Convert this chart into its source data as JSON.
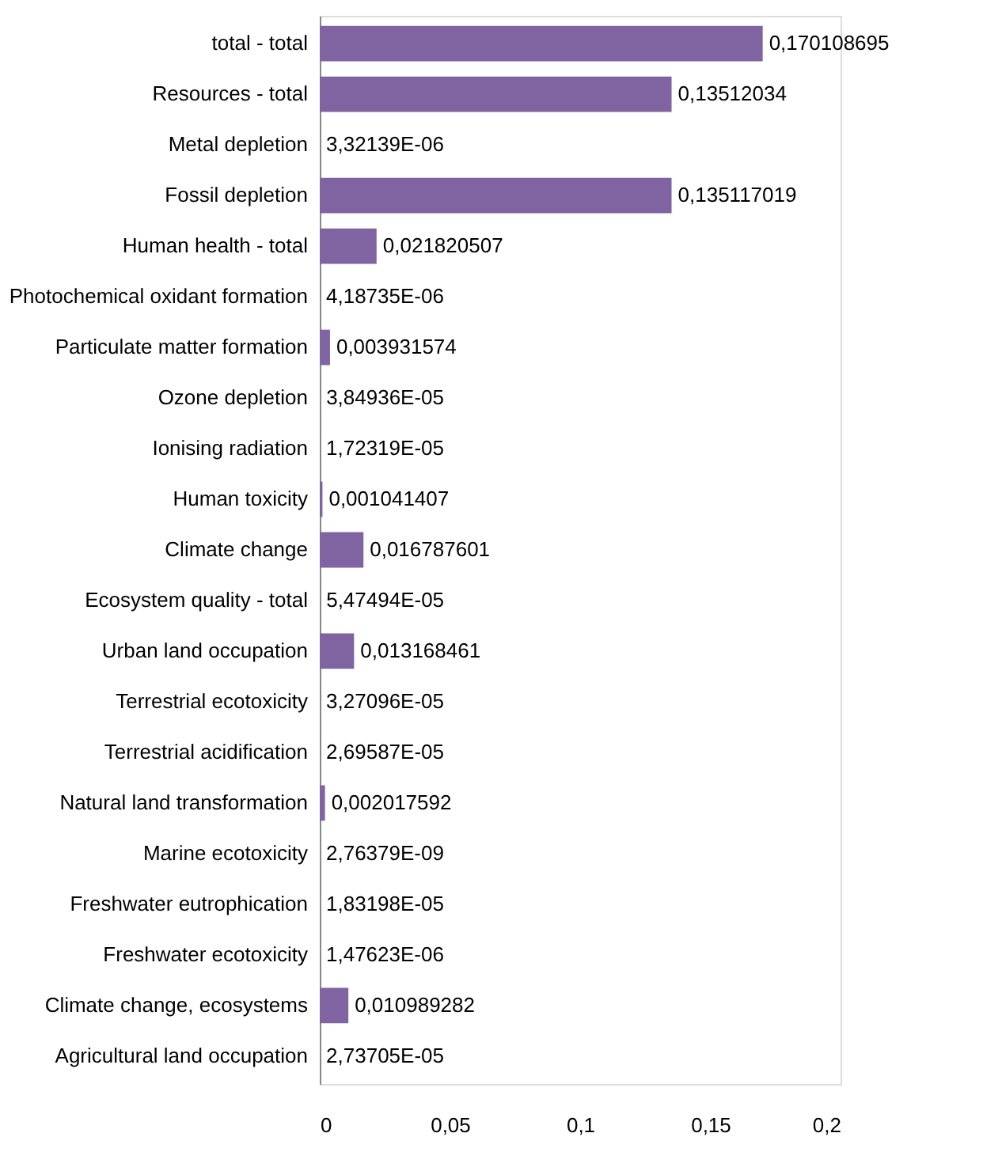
{
  "chart_data": {
    "type": "bar",
    "orientation": "horizontal",
    "categories": [
      "total - total",
      "Resources - total",
      "Metal depletion",
      "Fossil depletion",
      "Human health - total",
      "Photochemical oxidant formation",
      "Particulate matter formation",
      "Ozone depletion",
      "Ionising radiation",
      "Human toxicity",
      "Climate change",
      "Ecosystem quality - total",
      "Urban land occupation",
      "Terrestrial ecotoxicity",
      "Terrestrial acidification",
      "Natural land transformation",
      "Marine ecotoxicity",
      "Freshwater eutrophication",
      "Freshwater ecotoxicity",
      "Climate change, ecosystems",
      "Agricultural land occupation"
    ],
    "values": [
      0.170108695,
      0.13512034,
      3.32139e-06,
      0.135117019,
      0.021820507,
      4.18735e-06,
      0.003931574,
      3.84936e-05,
      1.72319e-05,
      0.001041407,
      0.016787601,
      5.47494e-05,
      0.013168461,
      3.27096e-05,
      2.69587e-05,
      0.002017592,
      2.76379e-09,
      1.83198e-05,
      1.47623e-06,
      0.010989282,
      2.73705e-05
    ],
    "value_labels": [
      "0,170108695",
      "0,13512034",
      "3,32139E-06",
      "0,135117019",
      "0,021820507",
      "4,18735E-06",
      "0,003931574",
      "3,84936E-05",
      "1,72319E-05",
      "0,001041407",
      "0,016787601",
      "5,47494E-05",
      "0,013168461",
      "3,27096E-05",
      "2,69587E-05",
      "0,002017592",
      "2,76379E-09",
      "1,83198E-05",
      "1,47623E-06",
      "0,010989282",
      "2,73705E-05"
    ],
    "color": "#8064a2",
    "xlim": [
      0,
      0.2
    ],
    "xticks": [
      0,
      {
        "value": 0.05,
        "label": "0,05"
      },
      {
        "value": 0.1,
        "label": "0,1"
      },
      {
        "value": 0.15,
        "label": "0,15"
      },
      {
        "value": 0.2,
        "label": "0,2"
      }
    ],
    "grid": false
  }
}
